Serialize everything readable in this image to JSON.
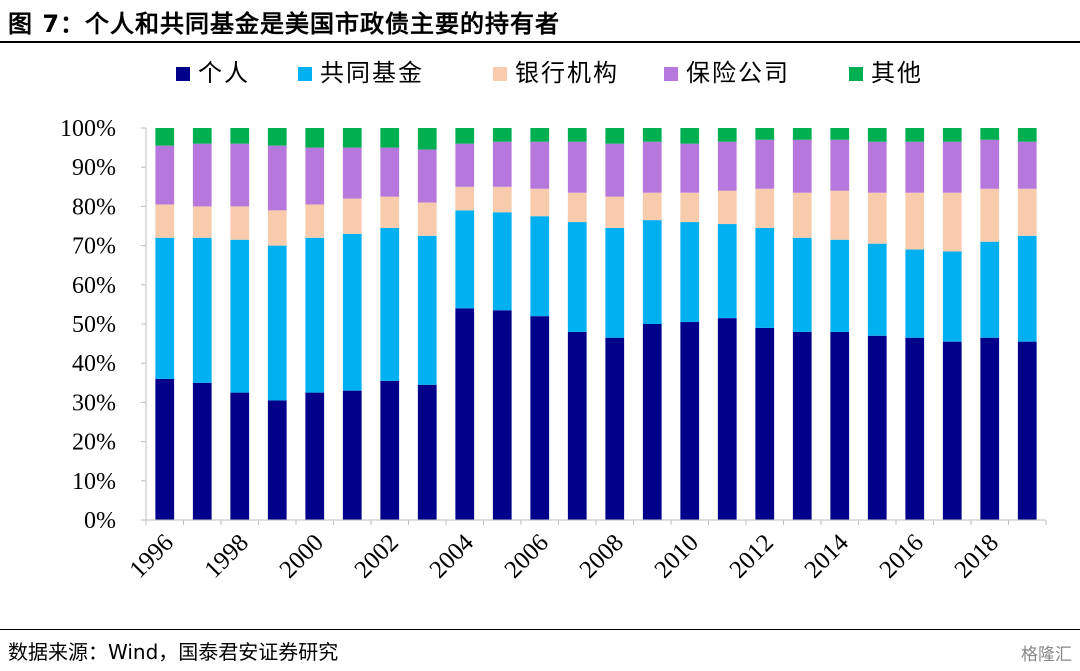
{
  "figure": {
    "title": "图 7：个人和共同基金是美国市政债主要的持有者",
    "source": "数据来源：Wind，国泰君安证券研究",
    "watermark": "格隆汇"
  },
  "chart_data": {
    "type": "bar",
    "stacked": true,
    "title": "",
    "xlabel": "",
    "ylabel": "",
    "ylim": [
      0,
      100
    ],
    "y_tick_format": "percent",
    "y_ticks": [
      "0%",
      "10%",
      "20%",
      "30%",
      "40%",
      "50%",
      "60%",
      "70%",
      "80%",
      "90%",
      "100%"
    ],
    "legend_position": "top",
    "categories": [
      "1996",
      "1997",
      "1998",
      "1999",
      "2000",
      "2001",
      "2002",
      "2003",
      "2004",
      "2005",
      "2006",
      "2007",
      "2008",
      "2009",
      "2010",
      "2011",
      "2012",
      "2013",
      "2014",
      "2015",
      "2016",
      "2017",
      "2018",
      "2019"
    ],
    "x_tick_labels": [
      "1996",
      "",
      "1998",
      "",
      "2000",
      "",
      "2002",
      "",
      "2004",
      "",
      "2006",
      "",
      "2008",
      "",
      "2010",
      "",
      "2012",
      "",
      "2014",
      "",
      "2016",
      "",
      "2018",
      ""
    ],
    "series": [
      {
        "name": "个人",
        "color": "#00008B",
        "values": [
          36,
          35,
          32.5,
          30.5,
          32.5,
          33,
          35.5,
          34.5,
          54,
          53.5,
          52,
          48,
          46.5,
          50,
          50.5,
          51.5,
          49,
          48,
          48,
          47,
          46.5,
          45.5,
          46.5,
          45.5
        ]
      },
      {
        "name": "共同基金",
        "color": "#00B0F0",
        "values": [
          36,
          37,
          39,
          39.5,
          39.5,
          40,
          39,
          38,
          25,
          25,
          25.5,
          28,
          28,
          26.5,
          25.5,
          24,
          25.5,
          24,
          23.5,
          23.5,
          22.5,
          23,
          24.5,
          27
        ]
      },
      {
        "name": "银行机构",
        "color": "#F8CBAD",
        "values": [
          8.5,
          8,
          8.5,
          9,
          8.5,
          9,
          8,
          8.5,
          6,
          6.5,
          7,
          7.5,
          8,
          7,
          7.5,
          8.5,
          10,
          11.5,
          12.5,
          13,
          14.5,
          15,
          13.5,
          12
        ]
      },
      {
        "name": "保险公司",
        "color": "#B678DC",
        "values": [
          15,
          16,
          16,
          16.5,
          14.5,
          13,
          12.5,
          13.5,
          11,
          11.5,
          12,
          13,
          13.5,
          13,
          12.5,
          12.5,
          12.5,
          13.5,
          13,
          13,
          13,
          13,
          12.5,
          12
        ]
      },
      {
        "name": "其他",
        "color": "#00B050",
        "values": [
          4.5,
          4,
          4,
          4.5,
          5,
          5,
          5,
          5.5,
          4,
          3.5,
          3.5,
          3.5,
          4,
          3.5,
          4,
          3.5,
          3,
          3,
          3,
          3.5,
          3.5,
          3.5,
          3,
          3.5
        ]
      }
    ]
  }
}
